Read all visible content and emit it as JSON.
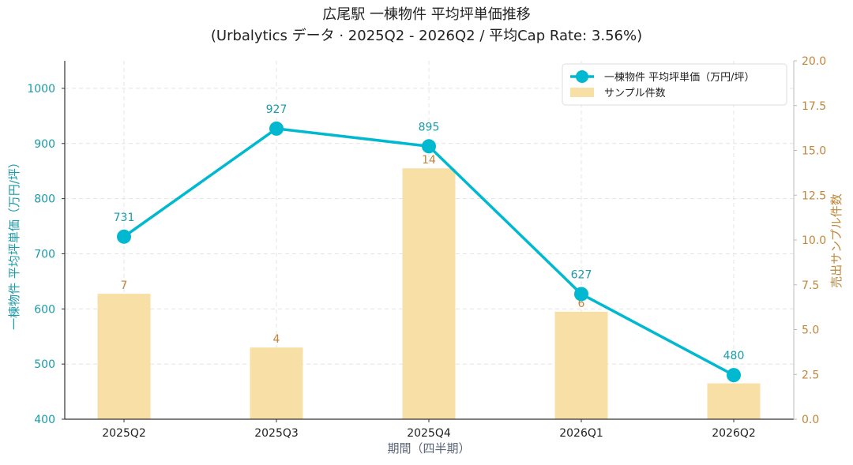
{
  "chart_data": {
    "type": "bar+line",
    "title": "広尾駅 一棟物件 平均坪単価推移",
    "subtitle": "(Urbalytics データ · 2025Q2 - 2026Q2 / 平均Cap Rate: 3.56%)",
    "xlabel": "期間（四半期）",
    "ylabel_left": "一棟物件 平均坪単価（万円/坪）",
    "ylabel_right": "売出サンプル件数",
    "categories": [
      "2025Q2",
      "2025Q3",
      "2025Q4",
      "2026Q1",
      "2026Q2"
    ],
    "series": [
      {
        "name": "一棟物件 平均坪単価（万円/坪）",
        "type": "line",
        "axis": "left",
        "color": "#00B8D0",
        "values": [
          731,
          927,
          895,
          627,
          480
        ]
      },
      {
        "name": "サンプル件数",
        "type": "bar",
        "axis": "right",
        "color": "#F8DFA6",
        "values": [
          7,
          4,
          14,
          6,
          2
        ]
      }
    ],
    "ylim_left": [
      400,
      1050
    ],
    "yticks_left": [
      400,
      500,
      600,
      700,
      800,
      900,
      1000
    ],
    "ylim_right": [
      0,
      20
    ],
    "yticks_right": [
      "0.0",
      "2.5",
      "5.0",
      "7.5",
      "10.0",
      "12.5",
      "15.0",
      "17.5",
      "20.0"
    ],
    "bar_value_labels": [
      "7",
      "4",
      "14",
      "6",
      ""
    ],
    "line_value_labels": [
      "731",
      "927",
      "895",
      "627",
      "480"
    ],
    "legend_position": "top-right",
    "grid": true,
    "colors": {
      "line": "#00B8D0",
      "left_axis_text": "#1A9AAA",
      "bar": "#F8DFA6",
      "right_axis_text": "#C0863A",
      "xlabel_text": "#5A6478"
    }
  }
}
